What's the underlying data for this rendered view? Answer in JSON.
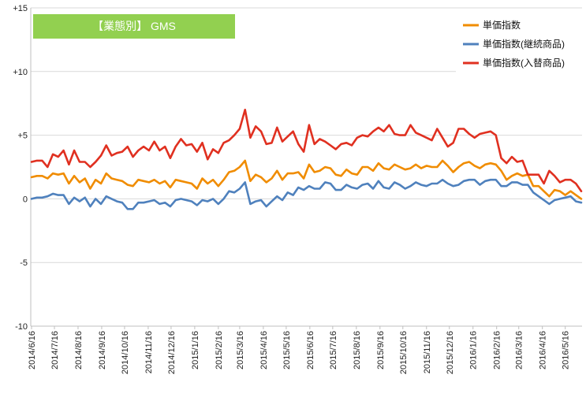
{
  "banner": {
    "text": "【業態別】 GMS",
    "color": "#92D050"
  },
  "chart_data": {
    "type": "line",
    "ylim": [
      -10,
      15
    ],
    "y_ticks": [
      {
        "value": 15,
        "label": "+15"
      },
      {
        "value": 10,
        "label": "+10"
      },
      {
        "value": 5,
        "label": "+5"
      },
      {
        "value": 0,
        "label": "0"
      },
      {
        "value": -5,
        "label": "-5"
      },
      {
        "value": -10,
        "label": "-10"
      }
    ],
    "grid": "horizontal",
    "legend_position": "top-right",
    "x_dates": [
      "2014/6/16",
      "2014/6/23",
      "2014/6/30",
      "2014/7/7",
      "2014/7/14",
      "2014/7/21",
      "2014/7/28",
      "2014/8/4",
      "2014/8/11",
      "2014/8/18",
      "2014/8/25",
      "2014/9/1",
      "2014/9/8",
      "2014/9/15",
      "2014/9/22",
      "2014/9/29",
      "2014/10/6",
      "2014/10/13",
      "2014/10/20",
      "2014/10/27",
      "2014/11/3",
      "2014/11/10",
      "2014/11/17",
      "2014/11/24",
      "2014/12/1",
      "2014/12/8",
      "2014/12/15",
      "2014/12/22",
      "2014/12/29",
      "2015/1/5",
      "2015/1/12",
      "2015/1/19",
      "2015/1/26",
      "2015/2/2",
      "2015/2/9",
      "2015/2/16",
      "2015/2/23",
      "2015/3/2",
      "2015/3/9",
      "2015/3/16",
      "2015/3/23",
      "2015/3/30",
      "2015/4/6",
      "2015/4/13",
      "2015/4/20",
      "2015/4/27",
      "2015/5/4",
      "2015/5/11",
      "2015/5/18",
      "2015/5/25",
      "2015/6/1",
      "2015/6/8",
      "2015/6/15",
      "2015/6/22",
      "2015/6/29",
      "2015/7/6",
      "2015/7/13",
      "2015/7/20",
      "2015/7/27",
      "2015/8/3",
      "2015/8/10",
      "2015/8/17",
      "2015/8/24",
      "2015/8/31",
      "2015/9/7",
      "2015/9/14",
      "2015/9/21",
      "2015/9/28",
      "2015/10/5",
      "2015/10/12",
      "2015/10/19",
      "2015/10/26",
      "2015/11/2",
      "2015/11/9",
      "2015/11/16",
      "2015/11/23",
      "2015/11/30",
      "2015/12/7",
      "2015/12/14",
      "2015/12/21",
      "2015/12/28",
      "2016/1/4",
      "2016/1/11",
      "2016/1/18",
      "2016/1/25",
      "2016/2/1",
      "2016/2/8",
      "2016/2/15",
      "2016/2/22",
      "2016/2/29",
      "2016/3/7",
      "2016/3/14",
      "2016/3/21",
      "2016/3/28",
      "2016/4/4",
      "2016/4/11",
      "2016/4/18",
      "2016/4/25",
      "2016/5/2",
      "2016/5/9",
      "2016/5/16",
      "2016/5/23",
      "2016/5/30",
      "2016/6/6"
    ],
    "x_tick_labels": [
      "2014/6/16",
      "2014/7/16",
      "2014/8/16",
      "2014/9/16",
      "2014/10/16",
      "2014/11/16",
      "2014/12/16",
      "2015/1/16",
      "2015/2/16",
      "2015/3/16",
      "2015/4/16",
      "2015/5/16",
      "2015/6/16",
      "2015/7/16",
      "2015/8/16",
      "2015/9/16",
      "2015/10/16",
      "2015/11/16",
      "2015/12/16",
      "2016/1/16",
      "2016/2/16",
      "2016/3/16",
      "2016/4/16",
      "2016/5/16"
    ],
    "series": [
      {
        "name": "単価指数",
        "color": "#F08C00",
        "values": [
          1.7,
          1.8,
          1.8,
          1.6,
          2.0,
          1.9,
          2.0,
          1.2,
          1.8,
          1.3,
          1.6,
          0.8,
          1.5,
          1.2,
          2.0,
          1.6,
          1.5,
          1.4,
          1.1,
          1.0,
          1.5,
          1.4,
          1.3,
          1.5,
          1.2,
          1.4,
          0.9,
          1.5,
          1.4,
          1.3,
          1.2,
          0.8,
          1.6,
          1.2,
          1.5,
          1.0,
          1.5,
          2.1,
          2.2,
          2.5,
          3.0,
          1.4,
          1.9,
          1.7,
          1.3,
          1.6,
          2.2,
          1.5,
          2.0,
          2.0,
          2.1,
          1.6,
          2.7,
          2.1,
          2.2,
          2.5,
          2.4,
          1.9,
          1.8,
          2.3,
          2.0,
          1.9,
          2.5,
          2.5,
          2.2,
          2.8,
          2.4,
          2.3,
          2.7,
          2.5,
          2.3,
          2.4,
          2.7,
          2.4,
          2.6,
          2.5,
          2.5,
          3.0,
          2.6,
          2.1,
          2.5,
          2.8,
          2.9,
          2.6,
          2.4,
          2.7,
          2.8,
          2.7,
          2.2,
          1.5,
          1.8,
          2.0,
          1.8,
          1.9,
          1.0,
          1.0,
          0.6,
          0.2,
          0.7,
          0.6,
          0.3,
          0.6,
          0.3,
          0.0
        ]
      },
      {
        "name": "単価指数(継続商品)",
        "color": "#4F81BD",
        "values": [
          0.0,
          0.1,
          0.1,
          0.2,
          0.4,
          0.3,
          0.3,
          -0.4,
          0.1,
          -0.2,
          0.1,
          -0.6,
          0.0,
          -0.4,
          0.2,
          0.0,
          -0.2,
          -0.3,
          -0.8,
          -0.8,
          -0.3,
          -0.3,
          -0.2,
          -0.1,
          -0.4,
          -0.3,
          -0.6,
          -0.1,
          0.0,
          -0.1,
          -0.2,
          -0.5,
          -0.1,
          -0.2,
          0.0,
          -0.4,
          0.0,
          0.6,
          0.5,
          0.8,
          1.3,
          -0.4,
          -0.2,
          -0.1,
          -0.6,
          -0.2,
          0.2,
          -0.1,
          0.5,
          0.3,
          0.9,
          0.7,
          1.0,
          0.8,
          0.8,
          1.3,
          1.2,
          0.7,
          0.7,
          1.1,
          0.9,
          0.8,
          1.1,
          1.2,
          0.8,
          1.4,
          0.9,
          0.8,
          1.3,
          1.1,
          0.8,
          1.0,
          1.3,
          1.1,
          1.0,
          1.2,
          1.2,
          1.5,
          1.2,
          1.0,
          1.1,
          1.4,
          1.5,
          1.5,
          1.1,
          1.4,
          1.5,
          1.5,
          1.0,
          1.0,
          1.3,
          1.3,
          1.1,
          1.1,
          0.5,
          0.2,
          -0.1,
          -0.4,
          -0.1,
          0.0,
          0.1,
          0.2,
          -0.2,
          -0.3
        ]
      },
      {
        "name": "単価指数(入替商品)",
        "color": "#E03020",
        "values": [
          2.9,
          3.0,
          3.0,
          2.5,
          3.5,
          3.3,
          3.8,
          2.7,
          3.8,
          2.9,
          2.9,
          2.5,
          2.9,
          3.4,
          4.2,
          3.4,
          3.6,
          3.7,
          4.1,
          3.3,
          3.8,
          4.1,
          3.8,
          4.5,
          3.8,
          4.1,
          3.2,
          4.1,
          4.7,
          4.2,
          4.3,
          3.7,
          4.4,
          3.1,
          3.9,
          3.6,
          4.4,
          4.6,
          5.0,
          5.5,
          7.0,
          4.8,
          5.7,
          5.3,
          4.3,
          4.4,
          5.6,
          4.5,
          4.9,
          5.3,
          4.3,
          3.7,
          5.8,
          4.3,
          4.7,
          4.5,
          4.2,
          3.9,
          4.3,
          4.4,
          4.2,
          4.8,
          5.0,
          4.9,
          5.3,
          5.6,
          5.3,
          5.8,
          5.1,
          5.0,
          5.0,
          5.8,
          5.2,
          5.0,
          4.8,
          4.6,
          5.5,
          4.8,
          4.1,
          4.4,
          5.5,
          5.5,
          5.1,
          4.8,
          5.1,
          5.2,
          5.3,
          5.0,
          3.2,
          2.8,
          3.3,
          2.9,
          3.0,
          1.9,
          1.9,
          1.9,
          1.2,
          2.2,
          1.8,
          1.3,
          1.5,
          1.5,
          1.2,
          0.6
        ]
      }
    ]
  }
}
